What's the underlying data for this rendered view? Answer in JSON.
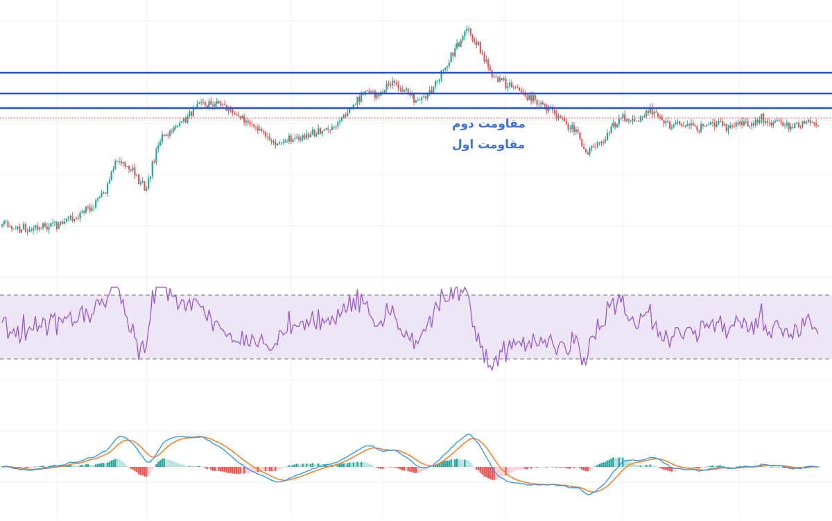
{
  "colors": {
    "background": "#ffffff",
    "grid": "#eef0f3",
    "candle_up": "#26a69a",
    "candle_down": "#ef5350",
    "resistance_line": "#2151d4",
    "annotation_text": "#3f6fd8",
    "price_line": "#e53935",
    "rsi_line": "#9c5fcf",
    "rsi_band_fill": "#ede6f7",
    "rsi_band_border": "#6f6f6f",
    "macd_line": "#2196f3",
    "signal_line": "#ff7a1f",
    "hist_pos": "#26a69a",
    "hist_pos_light": "#b2dfdb",
    "hist_neg": "#ef5350",
    "hist_neg_light": "#ffcdd2"
  },
  "chart_data": [
    {
      "type": "candlestick",
      "panel": "price",
      "axis_labels_visible": false,
      "grid": true,
      "trend_path": [
        [
          0,
          0.12
        ],
        [
          10,
          0.09
        ],
        [
          18,
          0.11
        ],
        [
          28,
          0.12
        ],
        [
          40,
          0.2
        ],
        [
          52,
          0.33
        ],
        [
          58,
          0.6
        ],
        [
          66,
          0.52
        ],
        [
          74,
          0.38
        ],
        [
          80,
          0.72
        ],
        [
          90,
          0.85
        ],
        [
          100,
          0.98
        ],
        [
          112,
          1.0
        ],
        [
          118,
          0.95
        ],
        [
          128,
          0.86
        ],
        [
          138,
          0.72
        ],
        [
          150,
          0.75
        ],
        [
          162,
          0.8
        ],
        [
          170,
          0.84
        ],
        [
          180,
          0.99
        ],
        [
          186,
          1.09
        ],
        [
          192,
          1.05
        ],
        [
          198,
          1.16
        ],
        [
          204,
          1.12
        ],
        [
          212,
          1.03
        ],
        [
          220,
          1.1
        ],
        [
          230,
          1.35
        ],
        [
          238,
          1.55
        ],
        [
          244,
          1.42
        ],
        [
          250,
          1.24
        ],
        [
          258,
          1.15
        ],
        [
          270,
          1.05
        ],
        [
          280,
          0.97
        ],
        [
          292,
          0.83
        ],
        [
          300,
          0.66
        ],
        [
          308,
          0.74
        ],
        [
          316,
          0.91
        ],
        [
          324,
          0.88
        ],
        [
          332,
          0.96
        ],
        [
          340,
          0.86
        ],
        [
          348,
          0.85
        ],
        [
          356,
          0.82
        ],
        [
          364,
          0.86
        ],
        [
          372,
          0.84
        ],
        [
          380,
          0.85
        ],
        [
          388,
          0.9
        ],
        [
          396,
          0.87
        ],
        [
          404,
          0.83
        ],
        [
          412,
          0.86
        ],
        [
          418,
          0.88
        ]
      ],
      "points": 419,
      "resistance_levels": [
        {
          "name": "top",
          "level": 1.23
        },
        {
          "name": "second",
          "level": 1.08
        },
        {
          "name": "first",
          "level": 0.97
        }
      ],
      "last_price_level": 0.9,
      "annotations": [
        {
          "text": "مقاومت دوم",
          "anchor_level": 1.08
        },
        {
          "text": "مقاومت اول",
          "anchor_level": 0.97
        }
      ]
    },
    {
      "type": "line",
      "panel": "rsi",
      "series": [
        {
          "values_mode": "oscillator"
        }
      ],
      "band": [
        30,
        70
      ],
      "ylim": [
        10,
        90
      ]
    },
    {
      "type": "line+histogram",
      "panel": "macd",
      "series": [
        {
          "role": "macd"
        },
        {
          "role": "signal"
        },
        {
          "role": "histogram"
        }
      ]
    }
  ]
}
